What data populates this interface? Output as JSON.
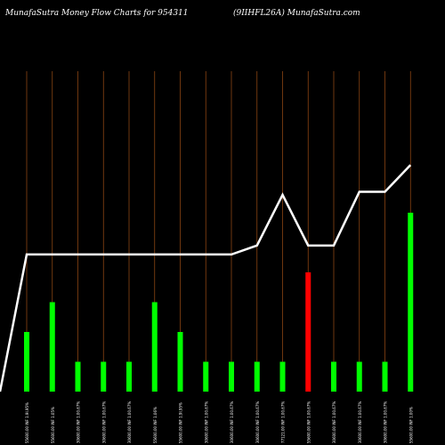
{
  "header": {
    "left_title": "MunafaSutra  Money Flow  Charts for 954311",
    "right_title": "(9IIHFL26A) MunafaSutra.com"
  },
  "colors": {
    "background": "#000000",
    "gridline": "#8b4513",
    "bar_up": "#00ff00",
    "bar_down": "#ff0000",
    "line": "#ffffff"
  },
  "chart_data": {
    "type": "bar",
    "title": "",
    "xlabel": "",
    "ylabel": "",
    "ylim": [
      0,
      10
    ],
    "grid": "vertical",
    "categories": [
      "55600.00 INF 1.9I.95%",
      "55600.00 INF 1.05%",
      "30600.00 INF 1.00.67%",
      "30600.00 INF 1.00.67%",
      "30600.00 INF 1.00.67%",
      "55600.00 INF 1.06%",
      "55600.00 INF 1.9I.95%",
      "30600.00 INF 1.00.67%",
      "30600.00 INF 1.00.67%",
      "30600.00 INF 1.00.67%",
      "77121.00 INF 1.00.67%",
      "55600.00 INF 1.00.67%",
      "30600.00 INF 1.00.67%",
      "30600.00 INF 1.00.67%",
      "30600.00 INF 1.00.67%",
      "55600.00 INF 1.00%"
    ],
    "series": [
      {
        "kind": "bars",
        "values": [
          2.0,
          3.0,
          1.0,
          1.0,
          1.0,
          3.0,
          2.0,
          1.0,
          1.0,
          1.0,
          1.0,
          4.0,
          1.0,
          1.0,
          1.0,
          6.0
        ],
        "colors": [
          "up",
          "up",
          "up",
          "up",
          "up",
          "up",
          "up",
          "up",
          "up",
          "up",
          "up",
          "down",
          "up",
          "up",
          "up",
          "up"
        ]
      },
      {
        "kind": "line",
        "values": [
          4.6,
          4.6,
          4.6,
          4.6,
          4.6,
          4.6,
          4.6,
          4.6,
          4.6,
          4.9,
          6.6,
          4.9,
          4.9,
          6.7,
          6.7,
          7.6
        ]
      }
    ],
    "line_start_value": 0.0
  }
}
